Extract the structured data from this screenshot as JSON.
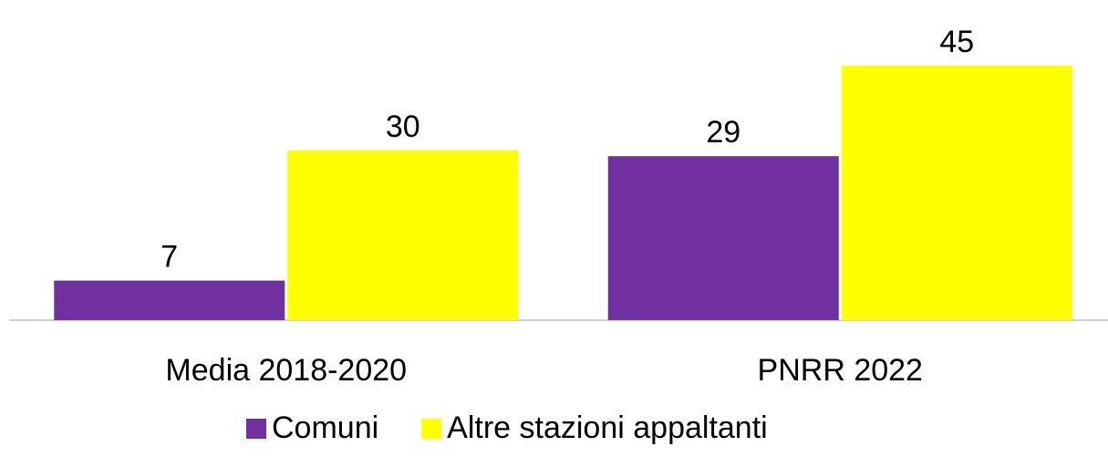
{
  "chart_data": {
    "type": "bar",
    "categories": [
      "Media 2018-2020",
      "PNRR 2022"
    ],
    "series": [
      {
        "name": "Comuni",
        "color": "#7030a0",
        "values": [
          7,
          29
        ]
      },
      {
        "name": "Altre stazioni appaltanti",
        "color": "#ffff00",
        "values": [
          30,
          45
        ]
      }
    ],
    "ylim": [
      0,
      50
    ],
    "legend": "bottom"
  }
}
